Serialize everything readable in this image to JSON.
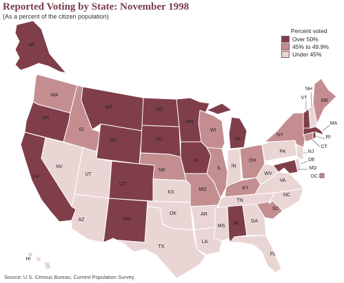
{
  "title": "Reported Voting by State:  November 1998",
  "subtitle": "(As a percent of the citizen population)",
  "source": "Source:  U.S. Census Bureau, Current Population Survey.",
  "legend": {
    "title": "Percent voted",
    "items": [
      {
        "label": "Over 50%",
        "color": "#7f3e4a"
      },
      {
        "label": "45% to 49.9%",
        "color": "#c48e90"
      },
      {
        "label": "Under 45%",
        "color": "#ead5d5"
      }
    ]
  },
  "states": [
    {
      "code": "AK",
      "category": "high"
    },
    {
      "code": "WA",
      "category": "mid"
    },
    {
      "code": "OR",
      "category": "high"
    },
    {
      "code": "CA",
      "category": "high"
    },
    {
      "code": "NV",
      "category": "low"
    },
    {
      "code": "ID",
      "category": "mid"
    },
    {
      "code": "MT",
      "category": "high"
    },
    {
      "code": "WY",
      "category": "high"
    },
    {
      "code": "UT",
      "category": "low"
    },
    {
      "code": "AZ",
      "category": "low"
    },
    {
      "code": "CO",
      "category": "high"
    },
    {
      "code": "NM",
      "category": "high"
    },
    {
      "code": "ND",
      "category": "high"
    },
    {
      "code": "SD",
      "category": "high"
    },
    {
      "code": "NE",
      "category": "mid"
    },
    {
      "code": "KS",
      "category": "low"
    },
    {
      "code": "OK",
      "category": "low"
    },
    {
      "code": "TX",
      "category": "low"
    },
    {
      "code": "MN",
      "category": "high"
    },
    {
      "code": "IA",
      "category": "high"
    },
    {
      "code": "MO",
      "category": "mid"
    },
    {
      "code": "AR",
      "category": "low"
    },
    {
      "code": "LA",
      "category": "low"
    },
    {
      "code": "WI",
      "category": "mid"
    },
    {
      "code": "IL",
      "category": "mid"
    },
    {
      "code": "MI",
      "category": "high"
    },
    {
      "code": "IN",
      "category": "low"
    },
    {
      "code": "OH",
      "category": "mid"
    },
    {
      "code": "KY",
      "category": "mid"
    },
    {
      "code": "TN",
      "category": "low"
    },
    {
      "code": "MS",
      "category": "low"
    },
    {
      "code": "AL",
      "category": "high"
    },
    {
      "code": "GA",
      "category": "low"
    },
    {
      "code": "FL",
      "category": "low"
    },
    {
      "code": "SC",
      "category": "mid"
    },
    {
      "code": "NC",
      "category": "low"
    },
    {
      "code": "VA",
      "category": "low"
    },
    {
      "code": "WV",
      "category": "low"
    },
    {
      "code": "PA",
      "category": "low"
    },
    {
      "code": "NY",
      "category": "mid"
    },
    {
      "code": "ME",
      "category": "mid"
    },
    {
      "code": "VT",
      "category": "high"
    },
    {
      "code": "NH",
      "category": "low"
    },
    {
      "code": "MA",
      "category": "high"
    },
    {
      "code": "RI",
      "category": "high"
    },
    {
      "code": "CT",
      "category": "mid"
    },
    {
      "code": "NJ",
      "category": "low"
    },
    {
      "code": "DE",
      "category": "low"
    },
    {
      "code": "MD",
      "category": "high"
    },
    {
      "code": "DC",
      "category": "mid"
    },
    {
      "code": "HI",
      "category": "low"
    }
  ]
}
